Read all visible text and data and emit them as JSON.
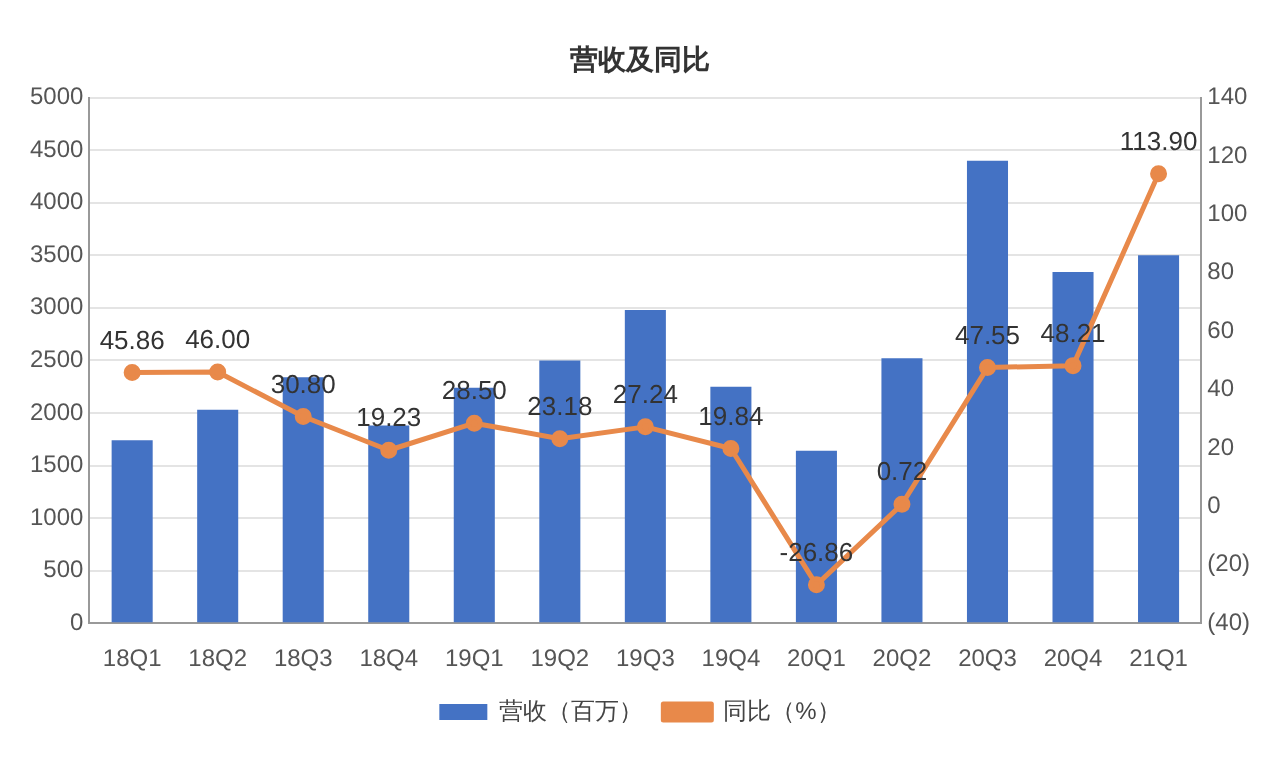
{
  "chart_data": {
    "type": "bar",
    "title": "营收及同比",
    "categories": [
      "18Q1",
      "18Q2",
      "18Q3",
      "18Q4",
      "19Q1",
      "19Q2",
      "19Q3",
      "19Q4",
      "20Q1",
      "20Q2",
      "20Q3",
      "20Q4",
      "21Q1"
    ],
    "series": [
      {
        "name": "营收（百万）",
        "color": "#4472c4",
        "values": [
          1740,
          2030,
          2340,
          1880,
          2240,
          2500,
          2980,
          2250,
          1640,
          2520,
          4400,
          3340,
          3500
        ]
      },
      {
        "name": "同比（%）",
        "type": "line",
        "axis": "y2",
        "color": "#e8894a",
        "marker": "circle",
        "values": [
          45.86,
          46.0,
          30.8,
          19.23,
          28.5,
          23.18,
          27.24,
          19.84,
          -26.86,
          0.72,
          47.55,
          48.21,
          113.9
        ],
        "value_labels": [
          "45.86",
          "46.00",
          "30.80",
          "19.23",
          "28.50",
          "23.18",
          "27.24",
          "19.84",
          "-26.86",
          "0.72",
          "47.55",
          "48.21",
          "113.90"
        ]
      }
    ],
    "ylim": [
      0,
      5000
    ],
    "yticks": [
      0,
      500,
      1000,
      1500,
      2000,
      2500,
      3000,
      3500,
      4000,
      4500,
      5000
    ],
    "y2lim": [
      -40,
      140
    ],
    "y2ticks": [
      {
        "value": -40,
        "label": "(40)"
      },
      {
        "value": -20,
        "label": "(20)"
      },
      0,
      20,
      40,
      60,
      80,
      100,
      120,
      140
    ],
    "grid": "y",
    "legend": "bottom"
  }
}
